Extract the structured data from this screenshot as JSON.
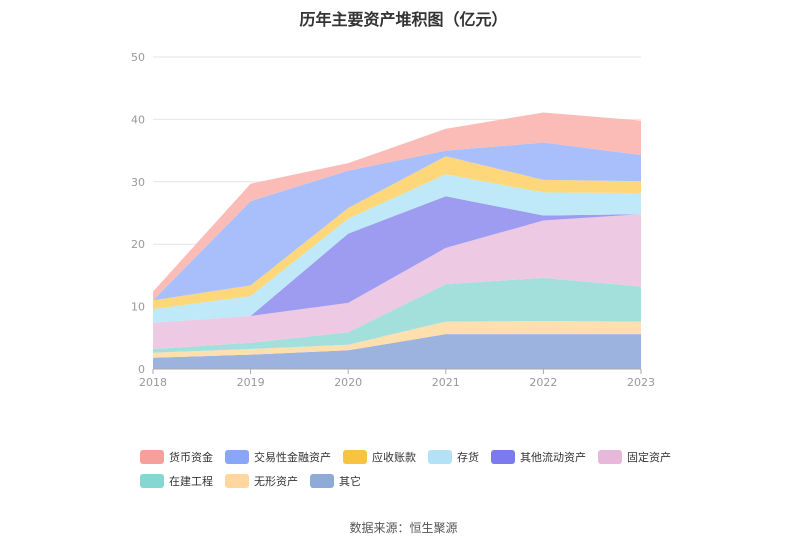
{
  "title": "历年主要资产堆积图（亿元）",
  "source": "数据来源：恒生聚源",
  "chart_data": {
    "type": "area",
    "stacked": true,
    "x": [
      "2018",
      "2019",
      "2020",
      "2021",
      "2022",
      "2023"
    ],
    "ylim": [
      0,
      50
    ],
    "yticks": [
      0,
      10,
      20,
      30,
      40,
      50
    ],
    "grid": true,
    "legend_position": "bottom",
    "series": [
      {
        "name": "其它",
        "color": "#9bb3de",
        "values": [
          1.8,
          2.3,
          3.0,
          5.6,
          5.6,
          5.6
        ]
      },
      {
        "name": "无形资产",
        "color": "#ffdfae",
        "values": [
          0.8,
          0.9,
          0.9,
          2.0,
          2.1,
          2.0
        ]
      },
      {
        "name": "在建工程",
        "color": "#a3e0dc",
        "values": [
          0.6,
          1.0,
          2.0,
          6.0,
          6.9,
          5.6
        ]
      },
      {
        "name": "固定资产",
        "color": "#eec9e4",
        "values": [
          4.2,
          4.3,
          4.7,
          5.8,
          9.2,
          11.6
        ]
      },
      {
        "name": "其他流动资产",
        "color": "#9d9cf0",
        "values": [
          0.0,
          0.0,
          11.1,
          8.3,
          0.8,
          0.0
        ]
      },
      {
        "name": "存货",
        "color": "#bfe8f8",
        "values": [
          2.2,
          3.2,
          2.4,
          3.5,
          3.7,
          3.4
        ]
      },
      {
        "name": "应收账款",
        "color": "#fdd77a",
        "values": [
          1.4,
          1.7,
          1.7,
          2.9,
          2.0,
          1.9
        ]
      },
      {
        "name": "交易性金融资产",
        "color": "#a9bffc",
        "values": [
          0.0,
          13.5,
          6.0,
          0.9,
          6.0,
          4.2
        ]
      },
      {
        "name": "货币资金",
        "color": "#fbbcb7",
        "values": [
          1.4,
          2.8,
          1.2,
          3.5,
          4.8,
          5.5
        ]
      }
    ]
  },
  "legend": [
    {
      "label": "货币资金",
      "color": "#f5a09a"
    },
    {
      "label": "交易性金融资产",
      "color": "#8aa7f7"
    },
    {
      "label": "应收账款",
      "color": "#f8c340"
    },
    {
      "label": "存货",
      "color": "#b3e2f6"
    },
    {
      "label": "其他流动资产",
      "color": "#7b7bee"
    },
    {
      "label": "固定资产",
      "color": "#e8b8da"
    },
    {
      "label": "在建工程",
      "color": "#86d6d2"
    },
    {
      "label": "无形资产",
      "color": "#ffd79e"
    },
    {
      "label": "其它",
      "color": "#8eaad8"
    }
  ]
}
